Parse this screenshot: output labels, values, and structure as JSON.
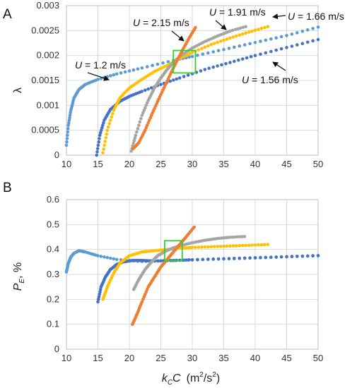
{
  "chart_data": [
    {
      "panel": "A",
      "type": "scatter",
      "ylabel": "λ",
      "xlim": [
        10,
        50
      ],
      "ylim": [
        0,
        0.003
      ],
      "x_ticks": [
        "10",
        "15",
        "20",
        "25",
        "30",
        "35",
        "40",
        "45",
        "50"
      ],
      "y_ticks": [
        "0",
        "0.0005",
        "0.001",
        "0.0015",
        "0.002",
        "0.0025",
        "0.003"
      ],
      "grid": true,
      "highlight_box": {
        "x": [
          27,
          30.5
        ],
        "y": [
          0.00165,
          0.0021
        ],
        "color": "#33cc33"
      },
      "series": [
        {
          "name": "U = 1.2 m/s",
          "color": "#5b9bd5",
          "x": [
            10,
            10.3,
            10.7,
            11.2,
            12,
            13,
            15,
            18,
            22,
            27,
            30,
            35,
            40,
            45,
            50
          ],
          "y": [
            0.0002,
            0.0006,
            0.0009,
            0.00115,
            0.00132,
            0.00142,
            0.00152,
            0.00163,
            0.00175,
            0.0019,
            0.00198,
            0.00212,
            0.00226,
            0.0024,
            0.00257
          ]
        },
        {
          "name": "U = 1.56 m/s",
          "color": "#4472c4",
          "x": [
            14.8,
            15.3,
            16,
            17,
            18.5,
            20,
            22,
            25,
            28,
            32,
            36,
            40,
            45,
            50
          ],
          "y": [
            0,
            0.0004,
            0.0007,
            0.00092,
            0.00108,
            0.00118,
            0.00128,
            0.00142,
            0.00155,
            0.00172,
            0.00186,
            0.002,
            0.00216,
            0.00232
          ]
        },
        {
          "name": "U = 1.66 m/s",
          "color": "#ffc000",
          "x": [
            15.8,
            16.5,
            17.5,
            18.5,
            20,
            22,
            24,
            26,
            28,
            30,
            33,
            36,
            39,
            42
          ],
          "y": [
            5e-05,
            0.0005,
            0.0009,
            0.00115,
            0.00135,
            0.00152,
            0.00168,
            0.0018,
            0.00194,
            0.00206,
            0.00222,
            0.00235,
            0.00247,
            0.00258
          ]
        },
        {
          "name": "U = 1.91 m/s",
          "color": "#a5a5a5",
          "x": [
            20.3,
            21,
            22,
            23,
            24,
            25,
            26,
            27,
            28,
            30,
            32,
            34,
            36,
            38.5
          ],
          "y": [
            8e-05,
            0.0004,
            0.0008,
            0.0011,
            0.00135,
            0.00155,
            0.00172,
            0.00186,
            0.00198,
            0.00215,
            0.00228,
            0.00239,
            0.00249,
            0.00258
          ]
        },
        {
          "name": "U = 2.15 m/s",
          "color": "#ed7d31",
          "x": [
            20.6,
            21.5,
            22.5,
            23.5,
            24.5,
            25.5,
            26.5,
            27.5,
            28.5,
            29.5,
            30.5
          ],
          "y": [
            0.00013,
            0.00025,
            0.0005,
            0.0008,
            0.00108,
            0.00135,
            0.00162,
            0.00188,
            0.00212,
            0.00235,
            0.00256
          ]
        }
      ]
    },
    {
      "panel": "B",
      "type": "scatter",
      "ylabel": "P_E, %",
      "xlabel": "k_C C (m²/s²)",
      "xlim": [
        10,
        50
      ],
      "ylim": [
        0,
        0.6
      ],
      "x_ticks": [
        "10",
        "15",
        "20",
        "25",
        "30",
        "35",
        "40",
        "45",
        "50"
      ],
      "y_ticks": [
        "0",
        "0.1",
        "0.2",
        "0.3",
        "0.4",
        "0.5",
        "0.6"
      ],
      "grid": true,
      "highlight_box": {
        "x": [
          25.6,
          28.4
        ],
        "y": [
          0.355,
          0.435
        ],
        "color": "#33cc33"
      },
      "series": [
        {
          "name": "U = 1.2 m/s",
          "color": "#5b9bd5",
          "x": [
            10,
            10.3,
            10.7,
            11.2,
            12,
            13,
            15,
            18,
            22,
            26,
            30,
            35,
            40,
            45,
            50
          ],
          "y": [
            0.31,
            0.345,
            0.37,
            0.385,
            0.395,
            0.39,
            0.375,
            0.36,
            0.352,
            0.355,
            0.358,
            0.362,
            0.366,
            0.371,
            0.376
          ]
        },
        {
          "name": "U = 1.56 m/s",
          "color": "#4472c4",
          "x": [
            15,
            15.5,
            16.2,
            17,
            18,
            19,
            20.5,
            22,
            24,
            27,
            30,
            35,
            40,
            45,
            50
          ],
          "y": [
            0.19,
            0.25,
            0.29,
            0.32,
            0.34,
            0.35,
            0.356,
            0.356,
            0.354,
            0.356,
            0.359,
            0.363,
            0.367,
            0.371,
            0.375
          ]
        },
        {
          "name": "U = 1.66 m/s",
          "color": "#ffc000",
          "x": [
            15.8,
            16.5,
            17.5,
            18.5,
            20,
            22,
            24,
            26,
            28,
            30,
            33,
            36,
            39,
            42
          ],
          "y": [
            0.2,
            0.25,
            0.305,
            0.345,
            0.375,
            0.39,
            0.395,
            0.4,
            0.405,
            0.408,
            0.411,
            0.414,
            0.417,
            0.42
          ]
        },
        {
          "name": "U = 1.91 m/s",
          "color": "#a5a5a5",
          "x": [
            20.7,
            21.5,
            22.5,
            23.5,
            24.5,
            25.5,
            26.5,
            28,
            30,
            32,
            34,
            36,
            38.3
          ],
          "y": [
            0.24,
            0.28,
            0.32,
            0.35,
            0.375,
            0.39,
            0.402,
            0.415,
            0.427,
            0.437,
            0.444,
            0.449,
            0.452
          ]
        },
        {
          "name": "U = 2.15 m/s",
          "color": "#ed7d31",
          "x": [
            20.5,
            21.2,
            22,
            23,
            24,
            25,
            26,
            27,
            28,
            29,
            30.3
          ],
          "y": [
            0.1,
            0.14,
            0.19,
            0.25,
            0.29,
            0.33,
            0.36,
            0.39,
            0.42,
            0.45,
            0.49
          ]
        }
      ]
    }
  ],
  "labels": {
    "panel_a": "A",
    "panel_b": "B",
    "lambda": "λ",
    "pe_main": "P",
    "pe_sub": "E",
    "pe_rest": ", %",
    "kc_k": "k",
    "kc_sub": "C",
    "kc_C": "C",
    "kc_units_open": "(m",
    "kc_sup1": "2",
    "kc_slash": "/s",
    "kc_sup2": "2",
    "kc_close": ")"
  },
  "annotations": [
    {
      "text": "U = 1.2 m/s",
      "u": "U",
      "rest": " = 1.2 m/s"
    },
    {
      "text": "U = 2.15 m/s",
      "u": "U",
      "rest": " = 2.15 m/s"
    },
    {
      "text": "U = 1.91 m/s",
      "u": "U",
      "rest": " = 1.91 m/s"
    },
    {
      "text": "U = 1.66 m/s",
      "u": "U",
      "rest": " = 1.66 m/s"
    },
    {
      "text": "U = 1.56 m/s",
      "u": "U",
      "rest": " = 1.56 m/s"
    }
  ]
}
